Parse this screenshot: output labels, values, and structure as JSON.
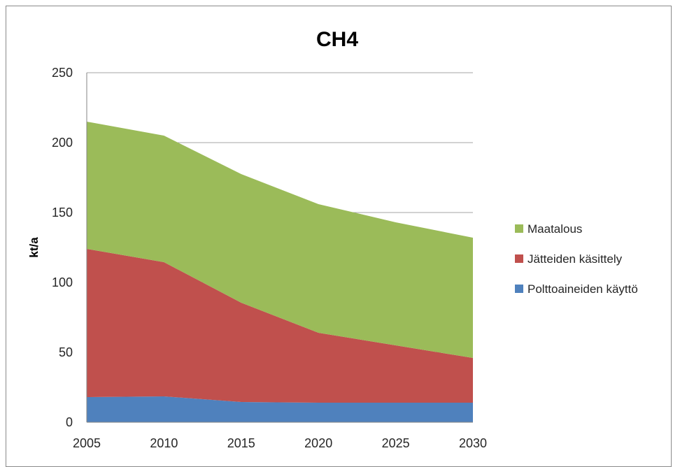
{
  "chart_data": {
    "type": "area",
    "stacked": true,
    "title": "CH4",
    "xlabel": "",
    "ylabel": "kt/a",
    "x": [
      2005,
      2010,
      2015,
      2020,
      2025,
      2030
    ],
    "xticks": [
      "2005",
      "2010",
      "2015",
      "2020",
      "2025",
      "2030"
    ],
    "ylim": [
      0,
      250
    ],
    "yticks": [
      0,
      50,
      100,
      150,
      200,
      250
    ],
    "grid": true,
    "legend_position": "right",
    "series": [
      {
        "name": "Polttoaineiden käyttö",
        "color": "#4f81bd",
        "values": [
          18,
          18.5,
          14.5,
          14,
          14,
          14
        ]
      },
      {
        "name": "Jätteiden käsittely",
        "color": "#c0504d",
        "values": [
          106,
          96,
          71,
          50,
          41,
          32
        ]
      },
      {
        "name": "Maatalous",
        "color": "#9bbb59",
        "values": [
          91,
          90.5,
          92,
          92,
          88,
          86
        ]
      }
    ],
    "legend_order": [
      "Maatalous",
      "Jätteiden käsittely",
      "Polttoaineiden käyttö"
    ]
  }
}
